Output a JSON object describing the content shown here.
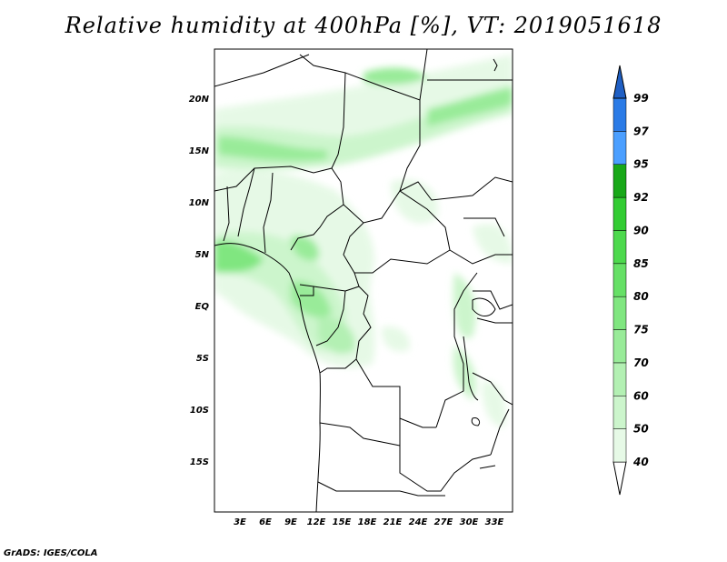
{
  "title": "Relative humidity at 400hPa [%], VT: 2019051618",
  "credit": "GrADS: IGES/COLA",
  "map": {
    "lat_labels": [
      "20N",
      "15N",
      "10N",
      "5N",
      "EQ",
      "5S",
      "10S",
      "15S"
    ],
    "lon_labels": [
      "3E",
      "6E",
      "9E",
      "12E",
      "15E",
      "18E",
      "21E",
      "24E",
      "27E",
      "30E",
      "33E"
    ]
  },
  "colorbar": {
    "levels": [
      "40",
      "50",
      "60",
      "70",
      "75",
      "80",
      "85",
      "90",
      "92",
      "95",
      "97",
      "99"
    ],
    "colors": [
      "#ffffff",
      "#e6f9e6",
      "#ccf5cc",
      "#b3f0b3",
      "#99eb99",
      "#80e680",
      "#66e066",
      "#4dd94d",
      "#33cc33",
      "#18a818",
      "#4b9fff",
      "#2b7be6",
      "#1f5fc4"
    ]
  }
}
